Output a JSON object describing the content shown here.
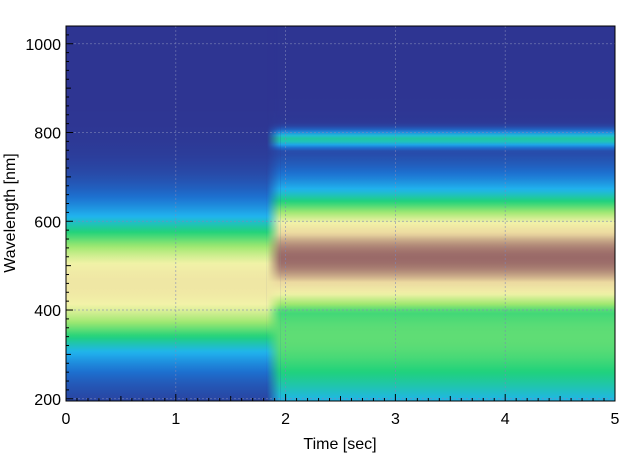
{
  "chart_data": {
    "type": "heatmap",
    "title": "",
    "xlabel": "Time [sec]",
    "ylabel": "Wavelength [nm]",
    "xlim": [
      0,
      5
    ],
    "ylim": [
      195,
      1040
    ],
    "x_ticks": [
      0,
      1,
      2,
      3,
      4,
      5
    ],
    "x_tick_labels": [
      "0",
      "1",
      "2",
      "3",
      "4",
      "5"
    ],
    "y_ticks": [
      200,
      400,
      600,
      800,
      1000
    ],
    "y_tick_labels": [
      "200",
      "400",
      "600",
      "800",
      "1000"
    ],
    "grid": true,
    "colormap": [
      "#2e3592",
      "#1d6fcf",
      "#20b4ef",
      "#20d27a",
      "#9fe870",
      "#f2f2a8",
      "#ecd9a0",
      "#9a6a68"
    ],
    "time_regions": [
      {
        "x_range": [
          0,
          1.83
        ],
        "bands": [
          {
            "wavelength_center": 458,
            "width": 108,
            "peak_level": 0.78
          },
          {
            "wavelength_center": 377,
            "width": 8,
            "peak_level": 0.34
          }
        ]
      },
      {
        "x_range": [
          1.95,
          5
        ],
        "bands": [
          {
            "wavelength_center": 517,
            "width": 98,
            "peak_level": 1.0
          },
          {
            "wavelength_center": 785,
            "width": 14,
            "peak_level": 0.38
          },
          {
            "wavelength_center": 340,
            "width": 140,
            "peak_level": 0.5
          }
        ]
      }
    ]
  }
}
